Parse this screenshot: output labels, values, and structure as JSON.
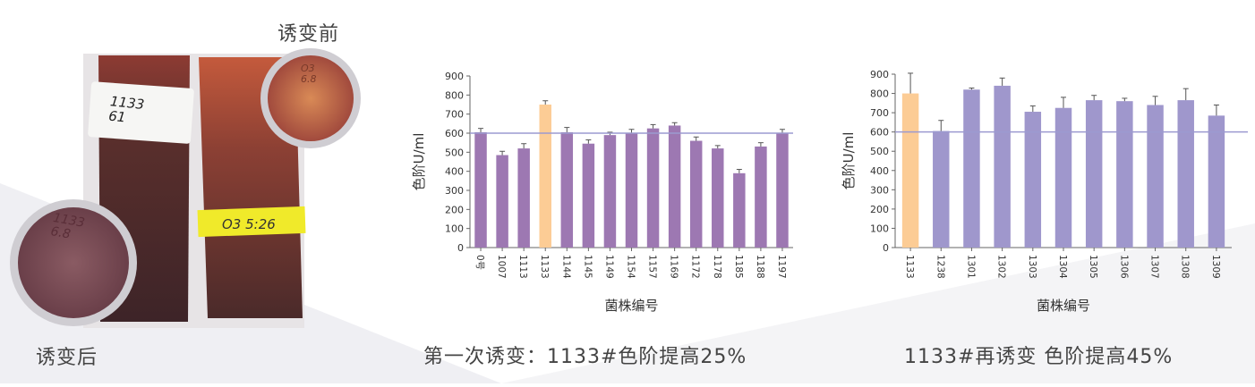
{
  "photo": {
    "label_before": "诱变前",
    "label_after": "诱变后",
    "tube_left_label": "1133\n61",
    "tube_right_label": "O3 5:26",
    "circle_top_text": "O3\n6.8",
    "circle_bottom_text": "1133\n6.8"
  },
  "captions": {
    "chart1": "第一次诱变：1133#色阶提高25%",
    "chart2": "1133#再诱变 色阶提高45%"
  },
  "colors": {
    "bar_purple_1": "#9d78b2",
    "bar_purple_2": "#9f97cc",
    "bar_highlight": "#fccc95",
    "reference_line": "#9c9ad0",
    "axis": "#666666"
  },
  "chart_data": [
    {
      "type": "bar",
      "categories": [
        "0号",
        "1007",
        "1113",
        "1133",
        "1144",
        "1145",
        "1149",
        "1154",
        "1157",
        "1169",
        "1172",
        "1178",
        "1185",
        "1188",
        "1197"
      ],
      "values": [
        605,
        485,
        520,
        750,
        605,
        545,
        590,
        600,
        625,
        640,
        560,
        520,
        390,
        530,
        600
      ],
      "errors": [
        20,
        20,
        25,
        20,
        25,
        20,
        15,
        20,
        20,
        15,
        20,
        15,
        20,
        20,
        20
      ],
      "highlight_index": 3,
      "reference_line": 600,
      "ylim": [
        0,
        900
      ],
      "yticks": [
        0,
        100,
        200,
        300,
        400,
        500,
        600,
        700,
        800,
        900
      ],
      "xlabel": "菌株编号",
      "ylabel": "色阶U/ml"
    },
    {
      "type": "bar",
      "categories": [
        "1133",
        "1238",
        "1301",
        "1302",
        "1303",
        "1304",
        "1305",
        "1306",
        "1307",
        "1308",
        "1309"
      ],
      "values": [
        800,
        605,
        820,
        840,
        705,
        725,
        765,
        760,
        740,
        765,
        685
      ],
      "errors": [
        105,
        55,
        8,
        40,
        30,
        55,
        25,
        15,
        45,
        60,
        55
      ],
      "highlight_index": 0,
      "reference_line": 600,
      "ylim": [
        0,
        900
      ],
      "yticks": [
        0,
        100,
        200,
        300,
        400,
        500,
        600,
        700,
        800,
        900
      ],
      "xlabel": "菌株编号",
      "ylabel": "色阶U/ml"
    }
  ]
}
